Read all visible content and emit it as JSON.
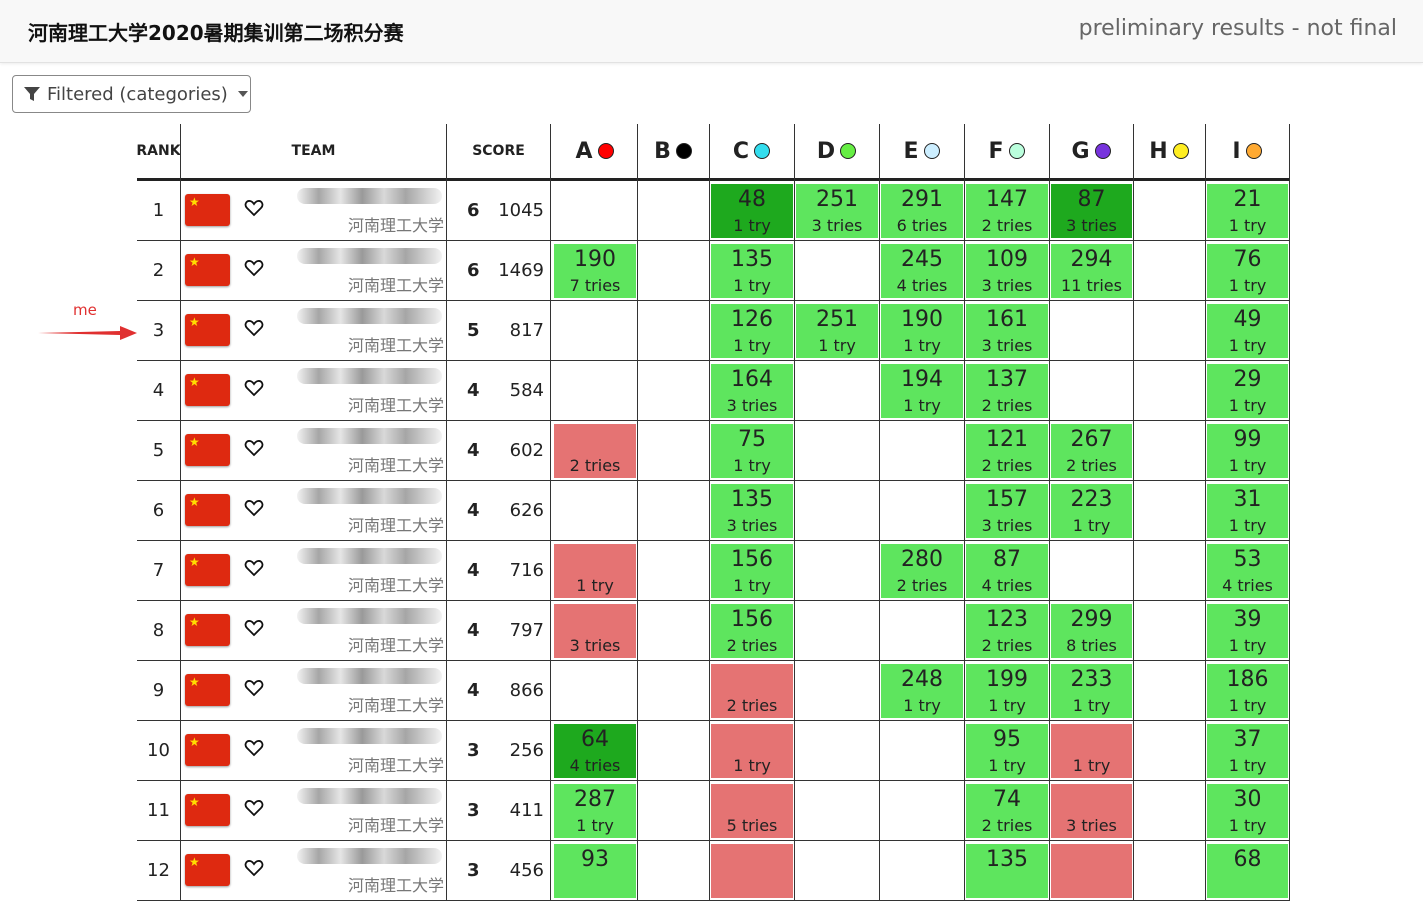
{
  "header": {
    "title": "河南理工大学2020暑期集训第二场积分赛",
    "status": "preliminary results - not final"
  },
  "filter": {
    "label": "Filtered (categories)"
  },
  "annotation": {
    "label": "me",
    "row_rank": "3"
  },
  "columns": {
    "rank": "RANK",
    "team": "TEAM",
    "score": "SCORE"
  },
  "problems": [
    {
      "label": "A",
      "color": "#ff0000"
    },
    {
      "label": "B",
      "color": "#000000"
    },
    {
      "label": "C",
      "color": "#33ddee"
    },
    {
      "label": "D",
      "color": "#66ee44"
    },
    {
      "label": "E",
      "color": "#cceeff"
    },
    {
      "label": "F",
      "color": "#bbffdd"
    },
    {
      "label": "G",
      "color": "#7733dd"
    },
    {
      "label": "H",
      "color": "#ffee22"
    },
    {
      "label": "I",
      "color": "#ffaa33"
    }
  ],
  "colors": {
    "solved": "#5ee55e",
    "first_to_solve": "#1ea91e",
    "failed": "#e57373"
  },
  "rows": [
    {
      "rank": "1",
      "affiliation": "河南理工大学",
      "solved": "6",
      "penalty": "1045",
      "cells": [
        null,
        null,
        {
          "s": "first",
          "t": "48",
          "n": "1 try"
        },
        {
          "s": "ok",
          "t": "251",
          "n": "3 tries"
        },
        {
          "s": "ok",
          "t": "291",
          "n": "6 tries"
        },
        {
          "s": "ok",
          "t": "147",
          "n": "2 tries"
        },
        {
          "s": "first",
          "t": "87",
          "n": "3 tries"
        },
        null,
        {
          "s": "ok",
          "t": "21",
          "n": "1 try"
        }
      ]
    },
    {
      "rank": "2",
      "affiliation": "河南理工大学",
      "solved": "6",
      "penalty": "1469",
      "cells": [
        {
          "s": "ok",
          "t": "190",
          "n": "7 tries"
        },
        null,
        {
          "s": "ok",
          "t": "135",
          "n": "1 try"
        },
        null,
        {
          "s": "ok",
          "t": "245",
          "n": "4 tries"
        },
        {
          "s": "ok",
          "t": "109",
          "n": "3 tries"
        },
        {
          "s": "ok",
          "t": "294",
          "n": "11 tries"
        },
        null,
        {
          "s": "ok",
          "t": "76",
          "n": "1 try"
        }
      ]
    },
    {
      "rank": "3",
      "affiliation": "河南理工大学",
      "solved": "5",
      "penalty": "817",
      "cells": [
        null,
        null,
        {
          "s": "ok",
          "t": "126",
          "n": "1 try"
        },
        {
          "s": "ok",
          "t": "251",
          "n": "1 try"
        },
        {
          "s": "ok",
          "t": "190",
          "n": "1 try"
        },
        {
          "s": "ok",
          "t": "161",
          "n": "3 tries"
        },
        null,
        null,
        {
          "s": "ok",
          "t": "49",
          "n": "1 try"
        }
      ]
    },
    {
      "rank": "4",
      "affiliation": "河南理工大学",
      "solved": "4",
      "penalty": "584",
      "cells": [
        null,
        null,
        {
          "s": "ok",
          "t": "164",
          "n": "3 tries"
        },
        null,
        {
          "s": "ok",
          "t": "194",
          "n": "1 try"
        },
        {
          "s": "ok",
          "t": "137",
          "n": "2 tries"
        },
        null,
        null,
        {
          "s": "ok",
          "t": "29",
          "n": "1 try"
        }
      ]
    },
    {
      "rank": "5",
      "affiliation": "河南理工大学",
      "solved": "4",
      "penalty": "602",
      "cells": [
        {
          "s": "fail",
          "t": "",
          "n": "2 tries"
        },
        null,
        {
          "s": "ok",
          "t": "75",
          "n": "1 try"
        },
        null,
        null,
        {
          "s": "ok",
          "t": "121",
          "n": "2 tries"
        },
        {
          "s": "ok",
          "t": "267",
          "n": "2 tries"
        },
        null,
        {
          "s": "ok",
          "t": "99",
          "n": "1 try"
        }
      ]
    },
    {
      "rank": "6",
      "affiliation": "河南理工大学",
      "solved": "4",
      "penalty": "626",
      "cells": [
        null,
        null,
        {
          "s": "ok",
          "t": "135",
          "n": "3 tries"
        },
        null,
        null,
        {
          "s": "ok",
          "t": "157",
          "n": "3 tries"
        },
        {
          "s": "ok",
          "t": "223",
          "n": "1 try"
        },
        null,
        {
          "s": "ok",
          "t": "31",
          "n": "1 try"
        }
      ]
    },
    {
      "rank": "7",
      "affiliation": "河南理工大学",
      "solved": "4",
      "penalty": "716",
      "cells": [
        {
          "s": "fail",
          "t": "",
          "n": "1 try"
        },
        null,
        {
          "s": "ok",
          "t": "156",
          "n": "1 try"
        },
        null,
        {
          "s": "ok",
          "t": "280",
          "n": "2 tries"
        },
        {
          "s": "ok",
          "t": "87",
          "n": "4 tries"
        },
        null,
        null,
        {
          "s": "ok",
          "t": "53",
          "n": "4 tries"
        }
      ]
    },
    {
      "rank": "8",
      "affiliation": "河南理工大学",
      "solved": "4",
      "penalty": "797",
      "cells": [
        {
          "s": "fail",
          "t": "",
          "n": "3 tries"
        },
        null,
        {
          "s": "ok",
          "t": "156",
          "n": "2 tries"
        },
        null,
        null,
        {
          "s": "ok",
          "t": "123",
          "n": "2 tries"
        },
        {
          "s": "ok",
          "t": "299",
          "n": "8 tries"
        },
        null,
        {
          "s": "ok",
          "t": "39",
          "n": "1 try"
        }
      ]
    },
    {
      "rank": "9",
      "affiliation": "河南理工大学",
      "solved": "4",
      "penalty": "866",
      "cells": [
        null,
        null,
        {
          "s": "fail",
          "t": "",
          "n": "2 tries"
        },
        null,
        {
          "s": "ok",
          "t": "248",
          "n": "1 try"
        },
        {
          "s": "ok",
          "t": "199",
          "n": "1 try"
        },
        {
          "s": "ok",
          "t": "233",
          "n": "1 try"
        },
        null,
        {
          "s": "ok",
          "t": "186",
          "n": "1 try"
        }
      ]
    },
    {
      "rank": "10",
      "affiliation": "河南理工大学",
      "solved": "3",
      "penalty": "256",
      "cells": [
        {
          "s": "first",
          "t": "64",
          "n": "4 tries"
        },
        null,
        {
          "s": "fail",
          "t": "",
          "n": "1 try"
        },
        null,
        null,
        {
          "s": "ok",
          "t": "95",
          "n": "1 try"
        },
        {
          "s": "fail",
          "t": "",
          "n": "1 try"
        },
        null,
        {
          "s": "ok",
          "t": "37",
          "n": "1 try"
        }
      ]
    },
    {
      "rank": "11",
      "affiliation": "河南理工大学",
      "solved": "3",
      "penalty": "411",
      "cells": [
        {
          "s": "ok",
          "t": "287",
          "n": "1 try"
        },
        null,
        {
          "s": "fail",
          "t": "",
          "n": "5 tries"
        },
        null,
        null,
        {
          "s": "ok",
          "t": "74",
          "n": "2 tries"
        },
        {
          "s": "fail",
          "t": "",
          "n": "3 tries"
        },
        null,
        {
          "s": "ok",
          "t": "30",
          "n": "1 try"
        }
      ]
    },
    {
      "rank": "12",
      "affiliation": "河南理工大学",
      "solved": "3",
      "penalty": "456",
      "cells": [
        {
          "s": "ok",
          "t": "93",
          "n": ""
        },
        null,
        {
          "s": "fail",
          "t": "",
          "n": ""
        },
        null,
        null,
        {
          "s": "ok",
          "t": "135",
          "n": ""
        },
        {
          "s": "fail",
          "t": "",
          "n": ""
        },
        null,
        {
          "s": "ok",
          "t": "68",
          "n": ""
        }
      ]
    }
  ]
}
